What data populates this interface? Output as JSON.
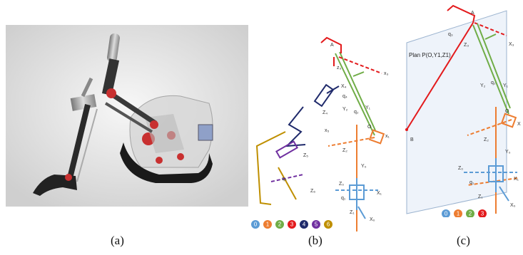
{
  "captions": {
    "a": "(a)",
    "b": "(b)",
    "c": "(c)"
  },
  "panel_b": {
    "frame_labels": {
      "A": "A",
      "x3": "x₃",
      "z3": "z₃",
      "x4": "X₄",
      "z4": "Z₄",
      "q4": "q₄",
      "x5": "x₅",
      "z5": "Z₅",
      "q5": "q₅",
      "z6": "Z₆",
      "y2": "Y₂",
      "q2": "q₂",
      "y1": "Y₁",
      "o": "O",
      "x1": "x₁",
      "z2": "Z₂",
      "y0": "Y₀",
      "z0": "Z₀",
      "q1": "q₁",
      "z1": "Z₁",
      "x1b": "X₁",
      "x0": "X₀",
      "q3": "q₃"
    },
    "legend": [
      "0",
      "1",
      "2",
      "3",
      "4",
      "5",
      "6"
    ],
    "legend_colors": [
      "#5b9bd5",
      "#ed7d31",
      "#70ad47",
      "#e31a1c",
      "#1f2a6b",
      "#7030a0",
      "#bf8f00"
    ]
  },
  "panel_c": {
    "plane_label": "Plan P(O,Y1,Z1)",
    "frame_labels": {
      "A": "A",
      "q3": "q₃",
      "z3": "Z₃",
      "x3": "X₃",
      "y2": "Y₂",
      "q2": "q₂",
      "y1": "Y₁",
      "o": "O",
      "x": "X",
      "z2": "Z₂",
      "y0": "Y₀",
      "b": "B",
      "z0": "Z₀",
      "q1": "q₁",
      "x1": "X₁",
      "z1": "Z₁",
      "x0": "X₀"
    },
    "legend": [
      "0",
      "1",
      "2",
      "3"
    ],
    "legend_colors": [
      "#5b9bd5",
      "#ed7d31",
      "#70ad47",
      "#e31a1c"
    ]
  }
}
